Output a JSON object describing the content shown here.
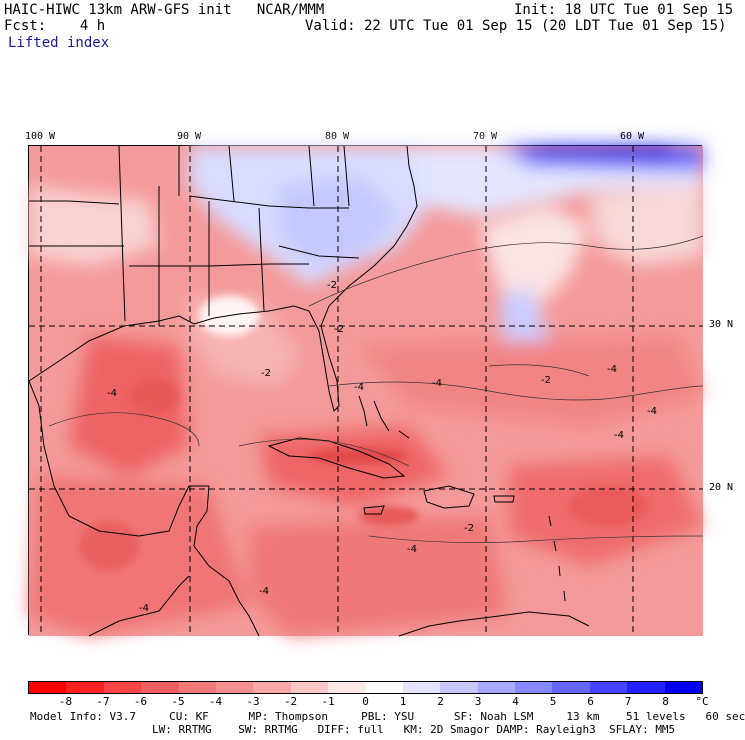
{
  "header": {
    "model_title": "HAIC-HIWC 13km ARW-GFS init   NCAR/MMM",
    "init": "Init: 18 UTC Tue 01 Sep 15",
    "fcst": "Fcst:    4 h",
    "valid": "Valid: 22 UTC Tue 01 Sep 15 (20 LDT Tue 01 Sep 15)",
    "field": "Lifted index"
  },
  "map": {
    "lon_labels": [
      "100 W",
      "90 W",
      "80 W",
      "70 W",
      "60 W"
    ],
    "lat_labels": [
      "30 N",
      "20 N"
    ],
    "contour_labels": [
      "-2",
      "-4"
    ]
  },
  "colorbar": {
    "labels": [
      "-8",
      "-7",
      "-6",
      "-5",
      "-4",
      "-3",
      "-2",
      "-1",
      "0",
      "1",
      "2",
      "3",
      "4",
      "5",
      "6",
      "7",
      "8"
    ],
    "unit": "°C",
    "colors": [
      "#ff0000",
      "#ff2020",
      "#f84545",
      "#f06060",
      "#f07878",
      "#f59090",
      "#f8a8a8",
      "#fcc8c8",
      "#ffe8e8",
      "#ffffff",
      "#e4e4ff",
      "#c8c8ff",
      "#a8a8ff",
      "#8888ff",
      "#6666ff",
      "#4444ff",
      "#2222ff",
      "#0000ee"
    ]
  },
  "footer": {
    "line1": "Model Info: V3.7     CU: KF      MP: Thompson     PBL: YSU      SF: Noah LSM     13 km    51 levels   60 sec",
    "line2": "LW: RRTMG    SW: RRTMG   DIFF: full   KM: 2D Smagor DAMP: Rayleigh3  SFLAY: MM5"
  }
}
